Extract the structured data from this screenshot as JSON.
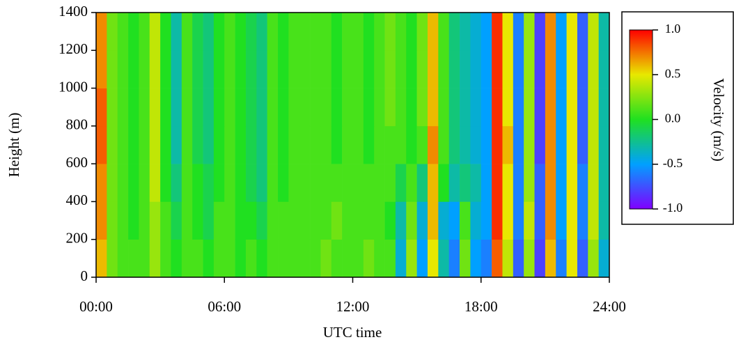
{
  "chart_data": {
    "type": "heatmap",
    "xlabel": "UTC time",
    "ylabel": "Height (m)",
    "xlim": [
      0,
      24
    ],
    "ylim": [
      0,
      1400
    ],
    "xticks": [
      {
        "value": 0,
        "label": "00:00"
      },
      {
        "value": 6,
        "label": "06:00"
      },
      {
        "value": 12,
        "label": "12:00"
      },
      {
        "value": 18,
        "label": "18:00"
      },
      {
        "value": 24,
        "label": "24:00"
      }
    ],
    "yticks": [
      0,
      200,
      400,
      600,
      800,
      1000,
      1200,
      1400
    ],
    "xbins": [
      0,
      0.5,
      1,
      1.5,
      2,
      2.5,
      3,
      3.5,
      4,
      4.5,
      5,
      5.5,
      6,
      6.5,
      7,
      7.5,
      8,
      8.5,
      9,
      9.5,
      10,
      10.5,
      11,
      11.5,
      12,
      12.5,
      13,
      13.5,
      14,
      14.5,
      15,
      15.5,
      16,
      16.5,
      17,
      17.5,
      18,
      18.5,
      19,
      19.5,
      20,
      20.5,
      21,
      21.5,
      22,
      22.5,
      23,
      23.5,
      24
    ],
    "ybins": [
      0,
      200,
      400,
      600,
      800,
      1000,
      1200,
      1400
    ],
    "values": [
      [
        0.6,
        0.2,
        0.1,
        0.1,
        0.1,
        0.3,
        0.1,
        0.0,
        0.1,
        0.1,
        0.0,
        0.1,
        0.1,
        0.0,
        0.1,
        0.0,
        0.1,
        0.1,
        0.1,
        0.1,
        0.1,
        0.2,
        0.1,
        0.1,
        0.1,
        0.2,
        0.1,
        0.1,
        -0.4,
        0.3,
        -0.5,
        0.5,
        -0.3,
        -0.6,
        0.2,
        -0.5,
        -0.6,
        0.8,
        0.4,
        -0.7,
        0.3,
        -0.8,
        0.6,
        -0.6,
        0.5,
        -0.7,
        0.3,
        -0.4
      ],
      [
        0.7,
        0.2,
        0.1,
        0.0,
        0.1,
        0.3,
        0.1,
        -0.1,
        0.1,
        0.0,
        -0.1,
        0.1,
        0.1,
        0.0,
        0.0,
        -0.1,
        0.1,
        0.1,
        0.1,
        0.1,
        0.1,
        0.1,
        0.2,
        0.1,
        0.1,
        0.1,
        0.1,
        0.0,
        -0.3,
        0.2,
        -0.4,
        0.6,
        -0.4,
        -0.5,
        0.1,
        -0.4,
        -0.5,
        0.9,
        0.5,
        -0.6,
        0.4,
        -0.7,
        0.7,
        -0.5,
        0.5,
        -0.6,
        0.4,
        -0.3
      ],
      [
        0.7,
        0.2,
        0.1,
        0.0,
        0.1,
        0.4,
        0.0,
        -0.2,
        0.1,
        0.0,
        -0.1,
        0.0,
        0.1,
        0.0,
        -0.1,
        -0.2,
        0.1,
        0.0,
        0.1,
        0.1,
        0.1,
        0.1,
        0.1,
        0.1,
        0.1,
        0.1,
        0.1,
        0.1,
        -0.1,
        0.1,
        -0.2,
        0.6,
        0.0,
        -0.3,
        -0.2,
        -0.3,
        -0.5,
        0.9,
        0.5,
        -0.6,
        0.3,
        -0.7,
        0.7,
        -0.5,
        0.5,
        -0.6,
        0.4,
        -0.3
      ],
      [
        0.8,
        0.2,
        0.1,
        0.0,
        0.1,
        0.4,
        0.0,
        -0.3,
        0.1,
        -0.1,
        -0.2,
        0.0,
        0.1,
        0.0,
        -0.1,
        -0.2,
        0.1,
        0.0,
        0.1,
        0.1,
        0.1,
        0.1,
        0.0,
        0.1,
        0.1,
        0.0,
        0.1,
        0.1,
        0.1,
        0.0,
        0.1,
        0.7,
        0.1,
        -0.2,
        -0.3,
        -0.4,
        -0.5,
        0.9,
        0.6,
        -0.6,
        0.3,
        -0.8,
        0.7,
        -0.5,
        0.5,
        -0.7,
        0.4,
        -0.3
      ],
      [
        0.8,
        0.2,
        0.1,
        0.0,
        0.1,
        0.4,
        0.0,
        -0.3,
        0.1,
        -0.1,
        -0.2,
        0.0,
        0.1,
        0.0,
        -0.1,
        -0.2,
        0.1,
        0.0,
        0.1,
        0.1,
        0.1,
        0.1,
        0.0,
        0.1,
        0.1,
        0.0,
        0.1,
        0.2,
        0.1,
        0.0,
        0.2,
        0.6,
        0.1,
        -0.2,
        -0.3,
        -0.4,
        -0.5,
        0.9,
        0.5,
        -0.6,
        0.3,
        -0.8,
        0.7,
        -0.5,
        0.5,
        -0.7,
        0.4,
        -0.3
      ],
      [
        0.7,
        0.2,
        0.1,
        0.0,
        0.1,
        0.4,
        0.0,
        -0.3,
        0.1,
        -0.1,
        -0.2,
        0.0,
        0.1,
        0.0,
        -0.1,
        -0.2,
        0.1,
        0.0,
        0.1,
        0.1,
        0.1,
        0.1,
        0.0,
        0.1,
        0.1,
        0.0,
        0.1,
        0.2,
        0.1,
        0.0,
        0.2,
        0.6,
        0.1,
        -0.2,
        -0.3,
        -0.4,
        -0.5,
        0.9,
        0.5,
        -0.6,
        0.3,
        -0.8,
        0.7,
        -0.5,
        0.5,
        -0.7,
        0.4,
        -0.3
      ],
      [
        0.7,
        0.2,
        0.1,
        0.0,
        0.1,
        0.4,
        0.0,
        -0.3,
        0.1,
        -0.1,
        -0.2,
        0.0,
        0.1,
        0.0,
        -0.1,
        -0.2,
        0.1,
        0.0,
        0.1,
        0.1,
        0.1,
        0.1,
        0.0,
        0.1,
        0.1,
        0.0,
        0.1,
        0.2,
        0.1,
        0.0,
        0.2,
        0.6,
        0.1,
        -0.2,
        -0.3,
        -0.4,
        -0.5,
        0.9,
        0.5,
        -0.6,
        0.3,
        -0.8,
        0.7,
        -0.5,
        0.5,
        -0.7,
        0.4,
        -0.3
      ]
    ],
    "colorbar": {
      "title": "Velocity (m/s)",
      "clim": [
        -1,
        1
      ],
      "ticks": [
        {
          "value": 1,
          "label": "1.0"
        },
        {
          "value": 0.5,
          "label": "0.5"
        },
        {
          "value": 0,
          "label": "0.0"
        },
        {
          "value": -0.5,
          "label": "-0.5"
        },
        {
          "value": -1,
          "label": "-1.0"
        }
      ],
      "colors": [
        "#8000ff",
        "#00a0ff",
        "#20e020",
        "#e8e800",
        "#ff0000"
      ]
    }
  }
}
